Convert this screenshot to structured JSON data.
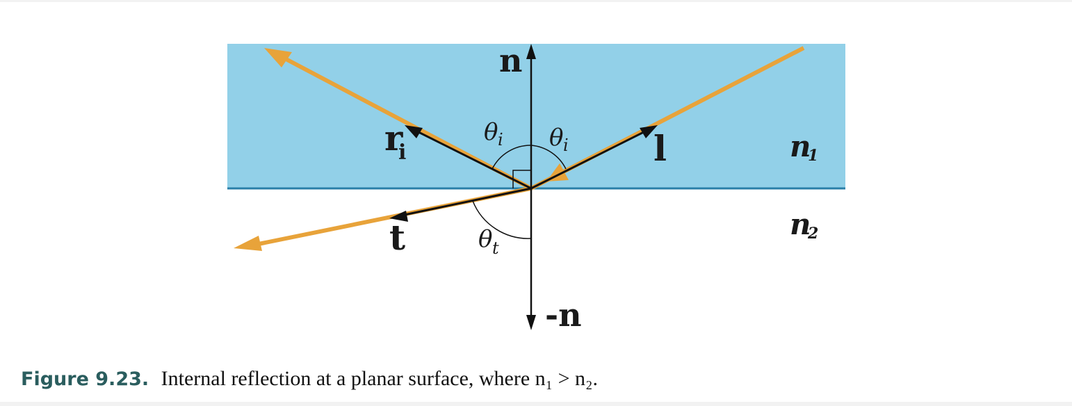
{
  "colors": {
    "medium_fill": "#92d0e8",
    "interface_line": "#2a7fa8",
    "ray": "#e8a33a",
    "vector": "#111111",
    "caption_accent": "#2a5d5e"
  },
  "labels": {
    "normal": "n",
    "neg_normal": "-n",
    "incident": "l",
    "reflected": "r",
    "reflected_sub": "i",
    "transmitted": "t",
    "theta_i_left": "θ",
    "theta_i_left_sub": "i",
    "theta_i_right": "θ",
    "theta_i_right_sub": "i",
    "theta_t": "θ",
    "theta_t_sub": "t",
    "n1": "n",
    "n1_sub": "1",
    "n2": "n",
    "n2_sub": "2"
  },
  "caption": {
    "number": "Figure 9.23.",
    "text": "Internal reflection at a planar surface, where n₁ > n₂."
  }
}
